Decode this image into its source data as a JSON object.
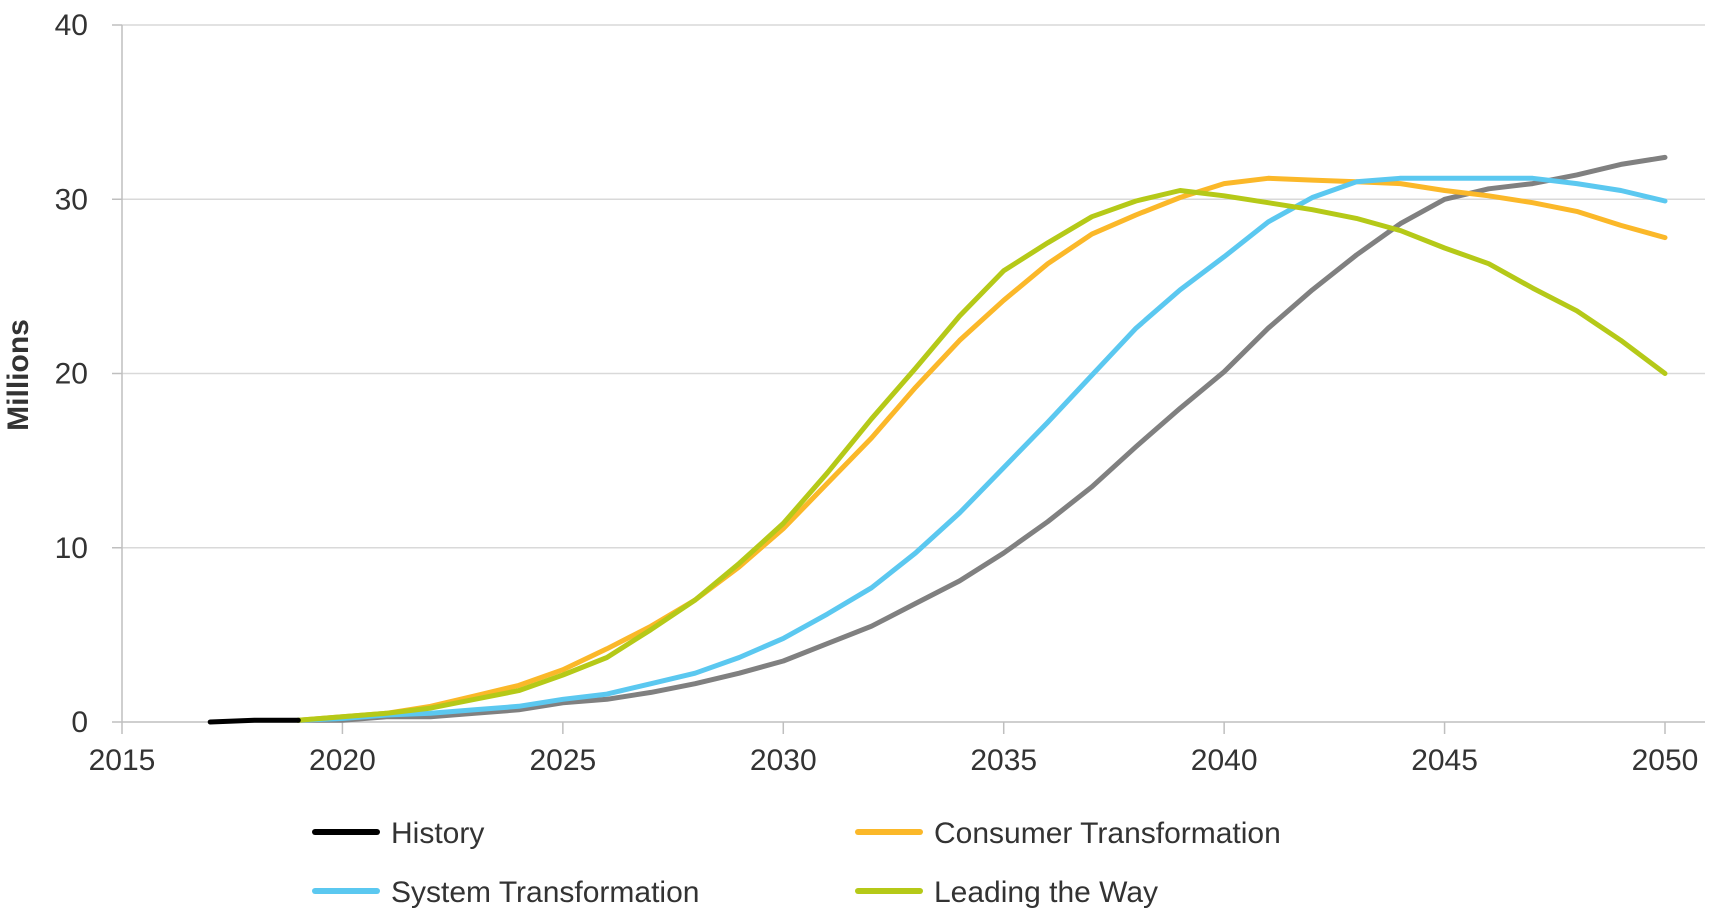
{
  "chart_data": {
    "type": "line",
    "title": "",
    "xlabel": "",
    "ylabel": "Millions",
    "xlim": [
      2015,
      2050
    ],
    "ylim": [
      0,
      40
    ],
    "grid": true,
    "legend_position": "bottom",
    "x_ticks": [
      "2015",
      "2020",
      "2025",
      "2030",
      "2035",
      "2040",
      "2045",
      "2050"
    ],
    "y_ticks": [
      "0",
      "10",
      "20",
      "30",
      "40"
    ],
    "series": [
      {
        "name": "History",
        "color": "#000000",
        "x": [
          2017,
          2018,
          2019
        ],
        "values": [
          0.0,
          0.1,
          0.1
        ]
      },
      {
        "name": "Consumer Transformation",
        "color": "#FBB829",
        "x": [
          2019,
          2020,
          2021,
          2022,
          2023,
          2024,
          2025,
          2026,
          2027,
          2028,
          2029,
          2030,
          2031,
          2032,
          2033,
          2034,
          2035,
          2036,
          2037,
          2038,
          2039,
          2040,
          2041,
          2042,
          2043,
          2044,
          2045,
          2046,
          2047,
          2048,
          2049,
          2050
        ],
        "values": [
          0.1,
          0.3,
          0.5,
          0.9,
          1.5,
          2.1,
          3.0,
          4.2,
          5.5,
          7.0,
          8.9,
          11.1,
          13.7,
          16.3,
          19.2,
          21.9,
          24.2,
          26.3,
          28.0,
          29.1,
          30.1,
          30.9,
          31.2,
          31.1,
          31.0,
          30.9,
          30.5,
          30.2,
          29.8,
          29.3,
          28.5,
          27.8
        ]
      },
      {
        "name": "System Transformation",
        "color": "#5BC8F0",
        "x": [
          2019,
          2020,
          2021,
          2022,
          2023,
          2024,
          2025,
          2026,
          2027,
          2028,
          2029,
          2030,
          2031,
          2032,
          2033,
          2034,
          2035,
          2036,
          2037,
          2038,
          2039,
          2040,
          2041,
          2042,
          2043,
          2044,
          2045,
          2046,
          2047,
          2048,
          2049,
          2050
        ],
        "values": [
          0.1,
          0.2,
          0.4,
          0.5,
          0.7,
          0.9,
          1.3,
          1.6,
          2.2,
          2.8,
          3.7,
          4.8,
          6.2,
          7.7,
          9.7,
          12.0,
          14.6,
          17.2,
          19.9,
          22.6,
          24.8,
          26.7,
          28.7,
          30.1,
          31.0,
          31.2,
          31.2,
          31.2,
          31.2,
          30.9,
          30.5,
          29.9
        ]
      },
      {
        "name": "Leading the Way",
        "color": "#B5C918",
        "x": [
          2019,
          2020,
          2021,
          2022,
          2023,
          2024,
          2025,
          2026,
          2027,
          2028,
          2029,
          2030,
          2031,
          2032,
          2033,
          2034,
          2035,
          2036,
          2037,
          2038,
          2039,
          2040,
          2041,
          2042,
          2043,
          2044,
          2045,
          2046,
          2047,
          2048,
          2049,
          2050
        ],
        "values": [
          0.1,
          0.3,
          0.5,
          0.8,
          1.3,
          1.8,
          2.7,
          3.7,
          5.3,
          7.0,
          9.1,
          11.4,
          14.3,
          17.4,
          20.3,
          23.3,
          25.9,
          27.5,
          29.0,
          29.9,
          30.5,
          30.2,
          29.8,
          29.4,
          28.9,
          28.2,
          27.2,
          26.3,
          24.9,
          23.6,
          21.9,
          20.0
        ]
      },
      {
        "name": "",
        "color": "#808080",
        "x": [
          2019,
          2020,
          2021,
          2022,
          2023,
          2024,
          2025,
          2026,
          2027,
          2028,
          2029,
          2030,
          2031,
          2032,
          2033,
          2034,
          2035,
          2036,
          2037,
          2038,
          2039,
          2040,
          2041,
          2042,
          2043,
          2044,
          2045,
          2046,
          2047,
          2048,
          2049,
          2050
        ],
        "values": [
          0.1,
          0.1,
          0.3,
          0.3,
          0.5,
          0.7,
          1.1,
          1.3,
          1.7,
          2.2,
          2.8,
          3.5,
          4.5,
          5.5,
          6.8,
          8.1,
          9.7,
          11.5,
          13.5,
          15.8,
          18.0,
          20.1,
          22.6,
          24.8,
          26.8,
          28.6,
          30.0,
          30.6,
          30.9,
          31.4,
          32.0,
          32.4
        ]
      }
    ],
    "legend": [
      {
        "label": "History",
        "color": "#000000"
      },
      {
        "label": "Consumer Transformation",
        "color": "#FBB829"
      },
      {
        "label": "System Transformation",
        "color": "#5BC8F0"
      },
      {
        "label": "Leading the Way",
        "color": "#B5C918"
      }
    ]
  },
  "colors": {
    "grid": "#D9D9D9",
    "axis": "#BFBFBF",
    "text": "#333333"
  }
}
